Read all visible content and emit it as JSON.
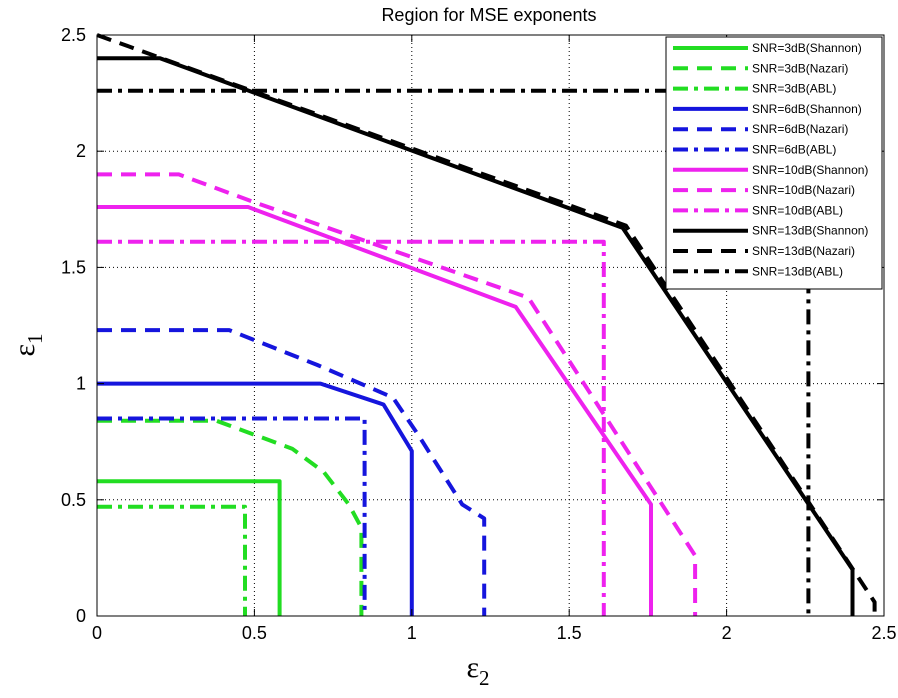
{
  "chart_data": {
    "type": "line",
    "title": "Region for MSE exponents",
    "xlabel": "ε",
    "xlabel_sub": "2",
    "ylabel": "ε",
    "ylabel_sub": "1",
    "xlim": [
      0,
      2.5
    ],
    "ylim": [
      0,
      2.5
    ],
    "xticks": [
      "0",
      "0.5",
      "1",
      "1.5",
      "2",
      "2.5"
    ],
    "yticks": [
      "0",
      "0.5",
      "1",
      "1.5",
      "2",
      "2.5"
    ],
    "grid": true,
    "legend_position": "top-right",
    "series": [
      {
        "name": "SNR=3dB(Shannon)",
        "color": "#22dd22",
        "style": "solid",
        "x": [
          0,
          0.58,
          0.58
        ],
        "y": [
          0.58,
          0.58,
          0
        ]
      },
      {
        "name": "SNR=3dB(Nazari)",
        "color": "#22dd22",
        "style": "dash",
        "x": [
          0,
          0.38,
          0.62,
          0.72,
          0.8,
          0.84,
          0.84
        ],
        "y": [
          0.84,
          0.84,
          0.72,
          0.62,
          0.48,
          0.38,
          0
        ]
      },
      {
        "name": "SNR=3dB(ABL)",
        "color": "#22dd22",
        "style": "dashdot",
        "x": [
          0,
          0.47,
          0.47
        ],
        "y": [
          0.47,
          0.47,
          0
        ]
      },
      {
        "name": "SNR=6dB(Shannon)",
        "color": "#1515dd",
        "style": "solid",
        "x": [
          0,
          0.71,
          0.91,
          1.0,
          1.0
        ],
        "y": [
          1.0,
          1.0,
          0.91,
          0.71,
          0
        ]
      },
      {
        "name": "SNR=6dB(Nazari)",
        "color": "#1515dd",
        "style": "dash",
        "x": [
          0,
          0.42,
          0.7,
          0.94,
          1.02,
          1.16,
          1.23,
          1.23
        ],
        "y": [
          1.23,
          1.23,
          1.08,
          0.94,
          0.78,
          0.48,
          0.42,
          0
        ]
      },
      {
        "name": "SNR=6dB(ABL)",
        "color": "#1515dd",
        "style": "dashdot",
        "x": [
          0,
          0.85,
          0.85
        ],
        "y": [
          0.85,
          0.85,
          0
        ]
      },
      {
        "name": "SNR=10dB(Shannon)",
        "color": "#ee22ee",
        "style": "solid",
        "x": [
          0,
          0.48,
          1.33,
          1.76,
          1.76
        ],
        "y": [
          1.76,
          1.76,
          1.33,
          0.48,
          0
        ]
      },
      {
        "name": "SNR=10dB(Nazari)",
        "color": "#ee22ee",
        "style": "dash",
        "x": [
          0,
          0.26,
          0.5,
          1.37,
          1.9,
          1.9
        ],
        "y": [
          1.9,
          1.9,
          1.78,
          1.37,
          0.26,
          0
        ]
      },
      {
        "name": "SNR=10dB(ABL)",
        "color": "#ee22ee",
        "style": "dashdot",
        "x": [
          0,
          1.61,
          1.61
        ],
        "y": [
          1.61,
          1.61,
          0
        ]
      },
      {
        "name": "SNR=13dB(Shannon)",
        "color": "#000000",
        "style": "solid",
        "x": [
          0,
          0.2,
          1.67,
          2.4,
          2.4
        ],
        "y": [
          2.4,
          2.4,
          1.67,
          0.2,
          0
        ]
      },
      {
        "name": "SNR=13dB(Nazari)",
        "color": "#000000",
        "style": "dash",
        "x": [
          0,
          1.68,
          2.47,
          2.47
        ],
        "y": [
          2.5,
          1.68,
          0.06,
          0
        ]
      },
      {
        "name": "SNR=13dB(ABL)",
        "color": "#000000",
        "style": "dashdot",
        "x": [
          0,
          2.26,
          2.26
        ],
        "y": [
          2.26,
          2.26,
          0
        ]
      }
    ]
  }
}
